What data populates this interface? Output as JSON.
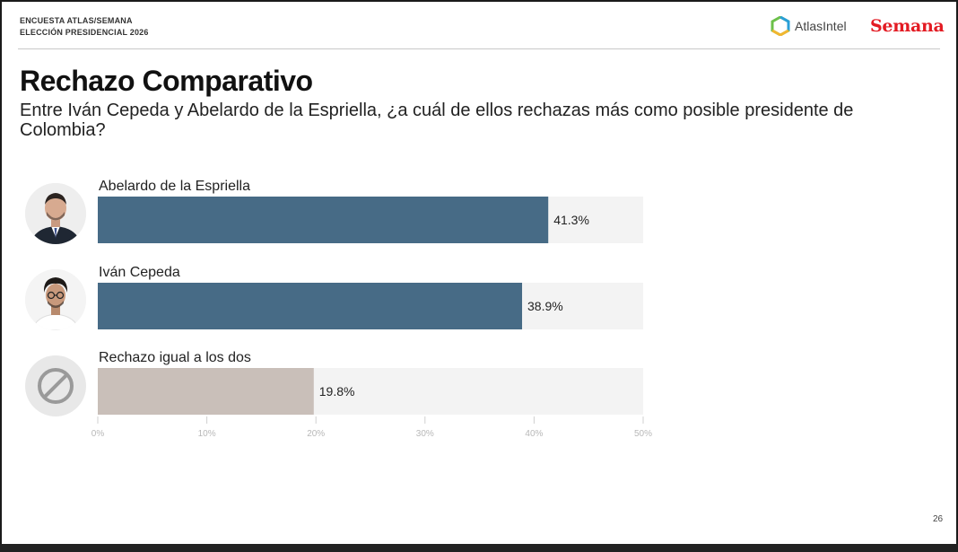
{
  "header": {
    "line1": "ENCUESTA ATLAS/SEMANA",
    "line2": "ELECCIÓN PRESIDENCIAL 2026",
    "brand_atlas": "AtlasIntel",
    "brand_semana": "Semana"
  },
  "slide": {
    "title": "Rechazo Comparativo",
    "subtitle": "Entre Iván Cepeda y Abelardo de la Espriella, ¿a cuál de ellos rechazas más como posible presidente de Colombia?",
    "page_number": "26"
  },
  "chart_data": {
    "type": "bar",
    "orientation": "horizontal",
    "categories": [
      "Abelardo de la Espriella",
      "Iván Cepeda",
      "Rechazo igual a los dos"
    ],
    "values": [
      41.3,
      38.9,
      19.8
    ],
    "value_labels": [
      "41.3%",
      "38.9%",
      "19.8%"
    ],
    "colors": [
      "#476b86",
      "#476b86",
      "#c9bfb9"
    ],
    "track_color": "#f3f3f3",
    "xlim": [
      0,
      50
    ],
    "xticks": [
      0,
      10,
      20,
      30,
      40,
      50
    ],
    "xtick_labels": [
      "0%",
      "10%",
      "20%",
      "30%",
      "40%",
      "50%"
    ],
    "avatars": [
      "person-photo-icon",
      "person-photo-icon",
      "prohibited-icon"
    ],
    "grid": false
  }
}
